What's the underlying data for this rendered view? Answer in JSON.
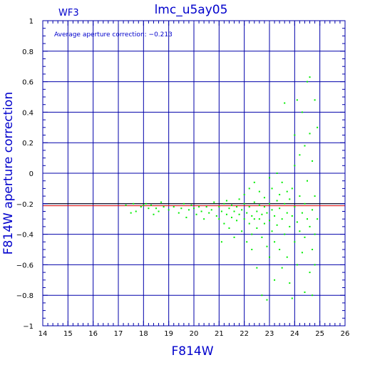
{
  "chart_data": {
    "type": "scatter",
    "title": "lmc_u5ay05",
    "chip_label": "WF3",
    "annotation": "Average aperture correction: −0.213",
    "xlabel": "F814W",
    "ylabel": "F814W aperture correction",
    "xlim": [
      14,
      26
    ],
    "ylim": [
      -1,
      1
    ],
    "x_ticks": [
      "14",
      "15",
      "16",
      "17",
      "18",
      "19",
      "20",
      "21",
      "22",
      "23",
      "24",
      "25",
      "26"
    ],
    "y_ticks": [
      "1",
      "0.8",
      "0.6",
      "0.4",
      "0.2",
      "0",
      "−0.2",
      "−0.4",
      "−0.6",
      "−0.8",
      "−1"
    ],
    "grid": true,
    "hlines": [
      {
        "y": -0.2,
        "color": "#000000"
      },
      {
        "y": -0.213,
        "color": "#dd0000"
      }
    ],
    "point_color": "#00ee00",
    "grid_color": "#0000aa",
    "series": [
      {
        "values": [
          [
            17.3,
            -0.21
          ],
          [
            17.5,
            -0.26
          ],
          [
            17.6,
            -0.2
          ],
          [
            17.7,
            -0.25
          ],
          [
            17.9,
            -0.22
          ],
          [
            18.0,
            -0.21
          ],
          [
            18.1,
            -0.2
          ],
          [
            18.2,
            -0.23
          ],
          [
            18.3,
            -0.21
          ],
          [
            18.4,
            -0.27
          ],
          [
            18.5,
            -0.23
          ],
          [
            18.6,
            -0.25
          ],
          [
            18.7,
            -0.19
          ],
          [
            18.8,
            -0.22
          ],
          [
            19.0,
            -0.24
          ],
          [
            19.2,
            -0.22
          ],
          [
            19.4,
            -0.26
          ],
          [
            19.5,
            -0.23
          ],
          [
            19.6,
            -0.2
          ],
          [
            19.7,
            -0.29
          ],
          [
            19.8,
            -0.24
          ],
          [
            19.9,
            -0.21
          ],
          [
            20.0,
            -0.23
          ],
          [
            20.1,
            -0.27
          ],
          [
            20.2,
            -0.22
          ],
          [
            20.3,
            -0.25
          ],
          [
            20.4,
            -0.3
          ],
          [
            20.5,
            -0.22
          ],
          [
            20.6,
            -0.26
          ],
          [
            20.7,
            -0.24
          ],
          [
            20.8,
            -0.19
          ],
          [
            20.9,
            -0.28
          ],
          [
            21.0,
            -0.22
          ],
          [
            21.0,
            -0.3
          ],
          [
            21.1,
            -0.25
          ],
          [
            21.1,
            -0.45
          ],
          [
            21.2,
            -0.2
          ],
          [
            21.2,
            -0.33
          ],
          [
            21.3,
            -0.27
          ],
          [
            21.3,
            -0.18
          ],
          [
            21.4,
            -0.23
          ],
          [
            21.4,
            -0.36
          ],
          [
            21.5,
            -0.21
          ],
          [
            21.5,
            -0.29
          ],
          [
            21.6,
            -0.25
          ],
          [
            21.6,
            -0.42
          ],
          [
            21.7,
            -0.22
          ],
          [
            21.7,
            -0.31
          ],
          [
            21.8,
            -0.17
          ],
          [
            21.8,
            -0.27
          ],
          [
            21.9,
            -0.24
          ],
          [
            21.9,
            -0.38
          ],
          [
            22.0,
            -0.2
          ],
          [
            22.0,
            -0.3
          ],
          [
            22.0,
            -0.14
          ],
          [
            22.1,
            -0.26
          ],
          [
            22.1,
            -0.45
          ],
          [
            22.2,
            -0.22
          ],
          [
            22.2,
            -0.33
          ],
          [
            22.2,
            -0.1
          ],
          [
            22.3,
            -0.28
          ],
          [
            22.3,
            -0.4
          ],
          [
            22.3,
            -0.5
          ],
          [
            22.4,
            -0.19
          ],
          [
            22.4,
            -0.3
          ],
          [
            22.4,
            -0.06
          ],
          [
            22.5,
            -0.25
          ],
          [
            22.5,
            -0.36
          ],
          [
            22.5,
            -0.62
          ],
          [
            22.6,
            -0.21
          ],
          [
            22.6,
            -0.3
          ],
          [
            22.6,
            -0.12
          ],
          [
            22.7,
            -0.27
          ],
          [
            22.7,
            -0.42
          ],
          [
            22.7,
            -0.8
          ],
          [
            22.8,
            -0.22
          ],
          [
            22.8,
            -0.33
          ],
          [
            22.8,
            -0.16
          ],
          [
            22.9,
            -0.26
          ],
          [
            22.9,
            -0.48
          ],
          [
            22.9,
            -0.83
          ],
          [
            23.0,
            -0.2
          ],
          [
            23.0,
            -0.31
          ],
          [
            23.0,
            -0.03
          ],
          [
            23.0,
            -0.55
          ],
          [
            23.1,
            -0.24
          ],
          [
            23.1,
            -0.38
          ],
          [
            23.1,
            -0.1
          ],
          [
            23.2,
            -0.28
          ],
          [
            23.2,
            -0.45
          ],
          [
            23.2,
            -0.7
          ],
          [
            23.3,
            -0.18
          ],
          [
            23.3,
            -0.34
          ],
          [
            23.3,
            0.0
          ],
          [
            23.4,
            -0.23
          ],
          [
            23.4,
            -0.5
          ],
          [
            23.4,
            -0.14
          ],
          [
            23.5,
            -0.3
          ],
          [
            23.5,
            -0.62
          ],
          [
            23.5,
            -0.06
          ],
          [
            23.6,
            -0.2
          ],
          [
            23.6,
            -0.4
          ],
          [
            23.6,
            0.46
          ],
          [
            23.7,
            -0.26
          ],
          [
            23.7,
            -0.55
          ],
          [
            23.7,
            -0.12
          ],
          [
            23.8,
            -0.17
          ],
          [
            23.8,
            -0.35
          ],
          [
            23.8,
            -0.72
          ],
          [
            23.9,
            -0.28
          ],
          [
            23.9,
            -0.1
          ],
          [
            23.9,
            -0.82
          ],
          [
            24.0,
            -0.22
          ],
          [
            24.0,
            0.05
          ],
          [
            24.0,
            -0.45
          ],
          [
            24.0,
            0.25
          ],
          [
            24.1,
            -0.32
          ],
          [
            24.1,
            -0.6
          ],
          [
            24.1,
            0.48
          ],
          [
            24.2,
            -0.15
          ],
          [
            24.2,
            -0.38
          ],
          [
            24.2,
            0.12
          ],
          [
            24.3,
            -0.26
          ],
          [
            24.3,
            -0.52
          ],
          [
            24.3,
            0.4
          ],
          [
            24.4,
            -0.2
          ],
          [
            24.4,
            -0.42
          ],
          [
            24.4,
            0.18
          ],
          [
            24.4,
            -0.78
          ],
          [
            24.5,
            -0.3
          ],
          [
            24.5,
            0.6
          ],
          [
            24.5,
            -0.05
          ],
          [
            24.6,
            -0.35
          ],
          [
            24.6,
            0.26
          ],
          [
            24.6,
            -0.65
          ],
          [
            24.6,
            0.63
          ],
          [
            24.7,
            -0.24
          ],
          [
            24.7,
            -0.5
          ],
          [
            24.7,
            0.08
          ],
          [
            24.7,
            -0.8
          ],
          [
            24.8,
            -0.4
          ],
          [
            24.8,
            0.48
          ],
          [
            24.8,
            -0.15
          ],
          [
            24.8,
            -0.6
          ],
          [
            24.9,
            0.3
          ],
          [
            24.9,
            -0.3
          ]
        ]
      }
    ]
  }
}
